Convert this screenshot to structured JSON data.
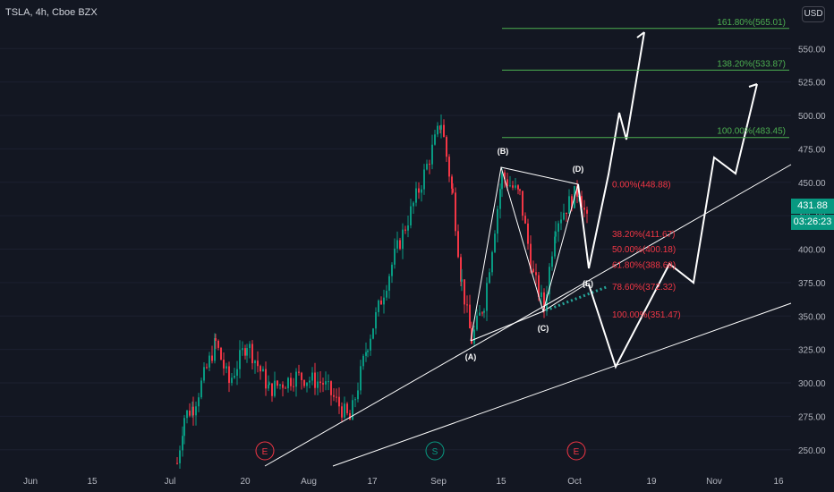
{
  "header": {
    "symbol_line": "TSLA, 4h, Cboe BZX"
  },
  "currency_button": "USD",
  "price_tag": {
    "price": "431.88",
    "countdown": "03:26:23",
    "color": "#089981"
  },
  "colors": {
    "up": "#089981",
    "down": "#f23645",
    "fib_green": "#4caf50",
    "fib_red": "#f23645",
    "drawing": "#ffffff",
    "bg": "#131722",
    "axis_text": "#b2b5be"
  },
  "chart_data": {
    "type": "candlestick",
    "title": "TSLA, 4h, Cboe BZX",
    "ylim": [
      236,
      580
    ],
    "y_ticks": [
      "250.00",
      "275.00",
      "300.00",
      "325.00",
      "350.00",
      "375.00",
      "400.00",
      "425.00",
      "450.00",
      "475.00",
      "500.00",
      "525.00",
      "550.00"
    ],
    "x_ticks": [
      "Jun",
      "15",
      "Jul",
      "20",
      "Aug",
      "17",
      "Sep",
      "15",
      "Oct",
      "19",
      "Nov",
      "16"
    ],
    "fib_extension": [
      {
        "label": "161.80%(565.01)",
        "value": 565.01
      },
      {
        "label": "138.20%(533.87)",
        "value": 533.87
      },
      {
        "label": "100.00%(483.45)",
        "value": 483.45
      }
    ],
    "fib_retracement": [
      {
        "label": "0.00%(448.88)",
        "value": 448.88
      },
      {
        "label": "38.20%(411.67)",
        "value": 411.67
      },
      {
        "label": "50.00%(400.18)",
        "value": 400.18
      },
      {
        "label": "61.80%(388.68)",
        "value": 388.68
      },
      {
        "label": "78.60%(372.32)",
        "value": 372.32
      },
      {
        "label": "100.00%(351.47)",
        "value": 351.47
      }
    ],
    "wave_labels": [
      {
        "label": "(A)",
        "value": 330
      },
      {
        "label": "(B)",
        "value": 462
      },
      {
        "label": "(C)",
        "value": 353
      },
      {
        "label": "(D)",
        "value": 450
      },
      {
        "label": "(E)",
        "value": 385
      }
    ],
    "events": [
      {
        "label": "E"
      },
      {
        "label": "S"
      },
      {
        "label": "E"
      }
    ],
    "candles_summary": {
      "period": "Jul – Oct",
      "low": 240,
      "high": 503,
      "last_close": 431.88
    }
  }
}
